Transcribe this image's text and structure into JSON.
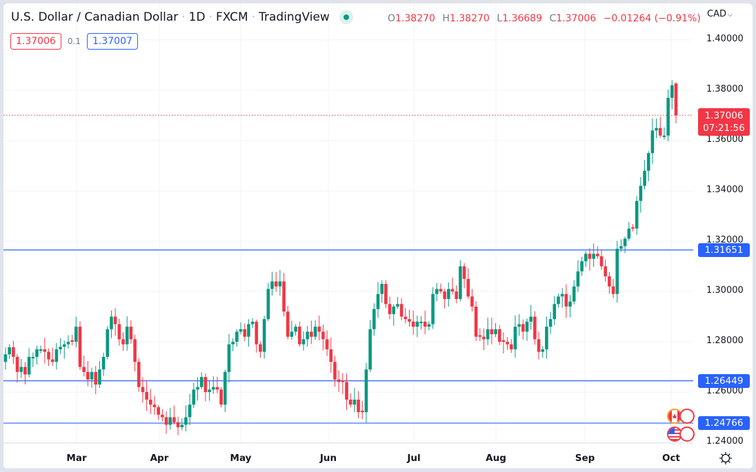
{
  "header": {
    "symbol_name": "U.S. Dollar / Canadian Dollar",
    "interval": "1D",
    "exchange": "FXCM",
    "source": "TradingView",
    "ohlc": {
      "o_label": "O",
      "o": "1.38270",
      "h_label": "H",
      "h": "1.38270",
      "l_label": "L",
      "l": "1.36689",
      "c_label": "C",
      "c": "1.37006",
      "change": "−0.01264 (−0.91%)"
    },
    "sell_price": "1.37006",
    "spread": "0.1",
    "buy_price": "1.37007",
    "currency": "CAD"
  },
  "price_axis": {
    "labels": [
      "1.40000",
      "1.38000",
      "1.36000",
      "1.34000",
      "1.32000",
      "1.30000",
      "1.28000",
      "1.26000",
      "1.24000"
    ],
    "last_price": "1.37006",
    "countdown": "07:21:56",
    "horizontal_lines": [
      "1.31651",
      "1.26449",
      "1.24766"
    ]
  },
  "time_axis": {
    "labels": [
      "Mar",
      "Apr",
      "May",
      "Jun",
      "Jul",
      "Aug",
      "Sep",
      "Oct"
    ]
  },
  "colors": {
    "up": "#089981",
    "down": "#f23645",
    "hline": "#2962ff",
    "grid": "#f0f3fa"
  },
  "chart_data": {
    "type": "candlestick",
    "title": "U.S. Dollar / Canadian Dollar · 1D · FXCM",
    "xlabel": "",
    "ylabel": "CAD",
    "ylim": [
      1.2385,
      1.4055
    ],
    "x_ticks": [
      "Mar",
      "Apr",
      "May",
      "Jun",
      "Jul",
      "Aug",
      "Sep",
      "Oct"
    ],
    "y_ticks": [
      1.24,
      1.26,
      1.28,
      1.3,
      1.32,
      1.34,
      1.36,
      1.38,
      1.4
    ],
    "horizontal_lines": [
      1.31651,
      1.26449,
      1.24766
    ],
    "last": {
      "open": 1.3827,
      "high": 1.3827,
      "low": 1.36689,
      "close": 1.37006,
      "change": -0.01264,
      "change_pct": -0.91
    },
    "closes": [
      1.275,
      1.2778,
      1.274,
      1.268,
      1.27,
      1.267,
      1.274,
      1.274,
      1.277,
      1.277,
      1.276,
      1.273,
      1.272,
      1.277,
      1.278,
      1.279,
      1.28,
      1.28,
      1.286,
      1.27,
      1.268,
      1.265,
      1.268,
      1.263,
      1.269,
      1.274,
      1.285,
      1.29,
      1.287,
      1.281,
      1.279,
      1.286,
      1.281,
      1.272,
      1.262,
      1.26,
      1.257,
      1.255,
      1.254,
      1.251,
      1.25,
      1.247,
      1.25,
      1.248,
      1.246,
      1.247,
      1.25,
      1.255,
      1.261,
      1.262,
      1.266,
      1.26,
      1.261,
      1.262,
      1.261,
      1.255,
      1.268,
      1.279,
      1.28,
      1.284,
      1.285,
      1.282,
      1.287,
      1.288,
      1.279,
      1.276,
      1.289,
      1.301,
      1.304,
      1.302,
      1.304,
      1.292,
      1.282,
      1.284,
      1.286,
      1.279,
      1.281,
      1.284,
      1.282,
      1.286,
      1.284,
      1.281,
      1.277,
      1.272,
      1.265,
      1.264,
      1.264,
      1.257,
      1.255,
      1.257,
      1.252,
      1.252,
      1.269,
      1.285,
      1.293,
      1.299,
      1.303,
      1.295,
      1.291,
      1.294,
      1.295,
      1.29,
      1.289,
      1.288,
      1.286,
      1.288,
      1.288,
      1.286,
      1.287,
      1.299,
      1.301,
      1.3,
      1.297,
      1.301,
      1.3,
      1.297,
      1.31,
      1.305,
      1.298,
      1.294,
      1.282,
      1.282,
      1.281,
      1.285,
      1.283,
      1.285,
      1.28,
      1.28,
      1.279,
      1.277,
      1.286,
      1.287,
      1.284,
      1.288,
      1.29,
      1.281,
      1.276,
      1.277,
      1.286,
      1.289,
      1.295,
      1.298,
      1.299,
      1.294,
      1.296,
      1.302,
      1.308,
      1.312,
      1.315,
      1.313,
      1.315,
      1.314,
      1.31,
      1.306,
      1.302,
      1.299,
      1.317,
      1.318,
      1.321,
      1.325,
      1.325,
      1.336,
      1.342,
      1.348,
      1.355,
      1.364,
      1.365,
      1.362,
      1.362,
      1.377,
      1.382,
      1.37
    ]
  }
}
